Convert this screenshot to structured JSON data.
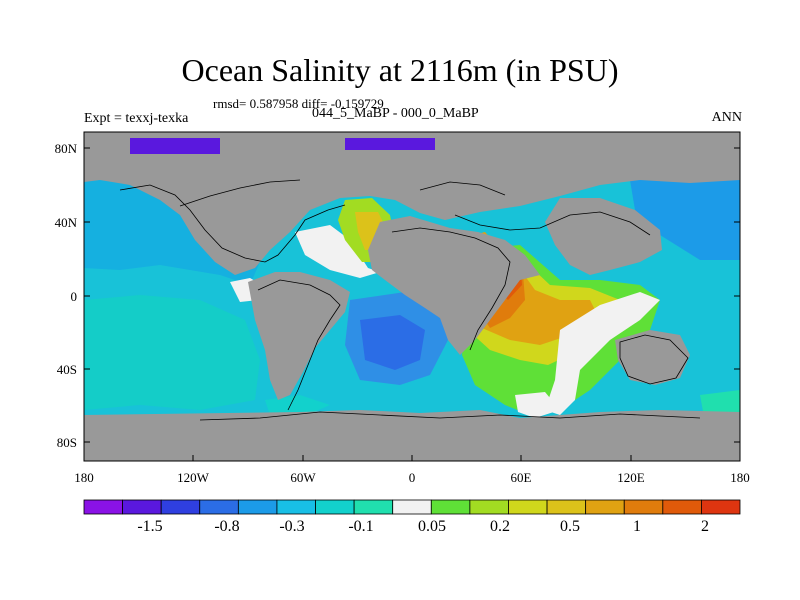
{
  "title": "Ocean Salinity at 2116m (in PSU)",
  "stats": "rmsd= 0.587958 diff= -0.159729",
  "experiment_label": "Expt = texxj-texka",
  "experiment_name": "044_5_MaBP - 000_0_MaBP",
  "season": "ANN",
  "x_ticks": [
    "180",
    "120W",
    "60W",
    "0",
    "60E",
    "120E",
    "180"
  ],
  "y_ticks": [
    "80N",
    "40N",
    "0",
    "40S",
    "80S"
  ],
  "colorbar": {
    "colors": [
      "#8a12e6",
      "#5a18de",
      "#2f3fe0",
      "#2b6de6",
      "#1c9be8",
      "#18bfe6",
      "#12d1cc",
      "#20dfae",
      "#f2f2f2",
      "#5fe037",
      "#a2dc22",
      "#d0d71c",
      "#dcc21a",
      "#e0a212",
      "#e07c0c",
      "#e05a0a",
      "#de3510"
    ],
    "labels": [
      "-1.5",
      "-0.8",
      "-0.3",
      "-0.1",
      "0.05",
      "0.2",
      "0.5",
      "1",
      "2"
    ]
  },
  "colors": {
    "land": "#999999",
    "ocean": "#18c2d8",
    "positive_high": "#e05a0a",
    "negative_low": "#5a18de"
  }
}
